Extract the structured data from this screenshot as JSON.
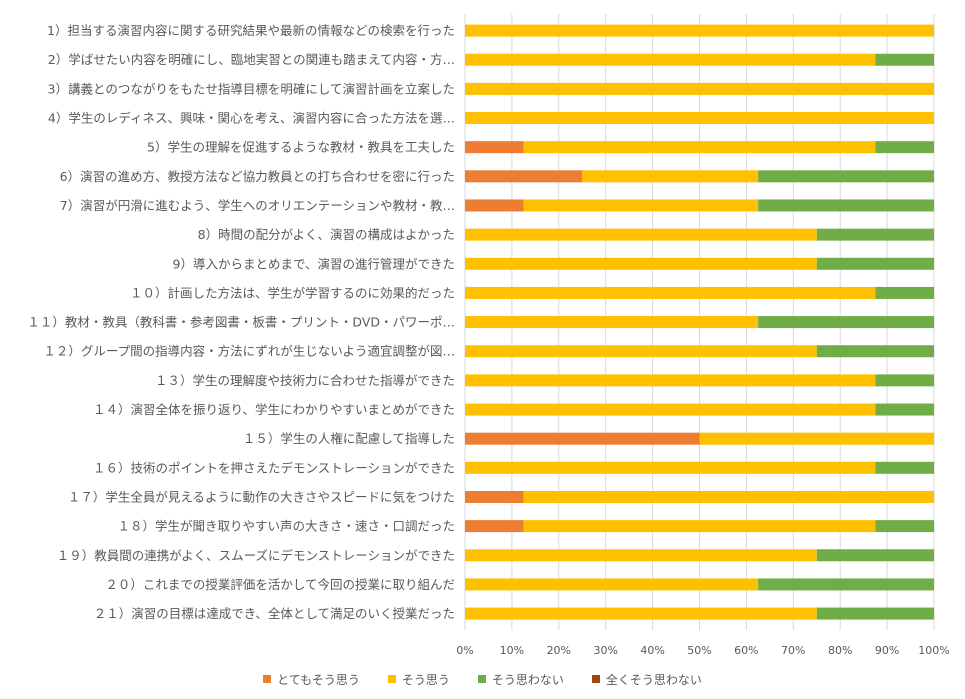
{
  "chart_data": {
    "type": "bar",
    "orientation": "horizontal",
    "stacked": "percent",
    "grid": true,
    "legend_position": "bottom",
    "categories": [
      "1）担当する演習内容に関する研究結果や最新の情報などの検索を行った",
      "2）学ばせたい内容を明確にし、臨地実習との関連も踏まえて内容・方…",
      "3）講義とのつながりをもたせ指導目標を明確にして演習計画を立案した",
      "4）学生のレディネス、興味・関心を考え、演習内容に合った方法を選…",
      "5）学生の理解を促進するような教材・教具を工夫した",
      "6）演習の進め方、教授方法など協力教員との打ち合わせを密に行った",
      "7）演習が円滑に進むよう、学生へのオリエンテーションや教材・教…",
      "8）時間の配分がよく、演習の構成はよかった",
      "9）導入からまとめまで、演習の進行管理ができた",
      "１０）計画した方法は、学生が学習するのに効果的だった",
      "１１）教材・教具（教科書・参考図書・板書・プリント・DVD・パワーポ…",
      "１２）グループ間の指導内容・方法にずれが生じないよう適宜調整が図…",
      "１３）学生の理解度や技術力に合わせた指導ができた",
      "１４）演習全体を振り返り、学生にわかりやすいまとめができた",
      "１５）学生の人権に配慮して指導した",
      "１６）技術のポイントを押さえたデモンストレーションができた",
      "１７）学生全員が見えるように動作の大きさやスピードに気をつけた",
      "１８）学生が聞き取りやすい声の大きさ・速さ・口調だった",
      "１９）教員間の連携がよく、スムーズにデモンストレーションができた",
      "２０）これまでの授業評価を活かして今回の授業に取り組んだ",
      "２１）演習の目標は達成でき、全体として満足のいく授業だった"
    ],
    "series": [
      {
        "name": "とてもそう思う",
        "color": "#ED7D31",
        "values": [
          0,
          0,
          0,
          0,
          12.5,
          25,
          12.5,
          0,
          0,
          0,
          0,
          0,
          0,
          0,
          50,
          0,
          12.5,
          12.5,
          0,
          0,
          0
        ]
      },
      {
        "name": "そう思う",
        "color": "#FFC000",
        "values": [
          100,
          87.5,
          100,
          100,
          75,
          37.5,
          50,
          75,
          75,
          87.5,
          62.5,
          75,
          87.5,
          87.5,
          50,
          87.5,
          87.5,
          75,
          75,
          62.5,
          75
        ]
      },
      {
        "name": "そう思わない",
        "color": "#70AD47",
        "values": [
          0,
          12.5,
          0,
          0,
          12.5,
          37.5,
          37.5,
          25,
          25,
          12.5,
          37.5,
          25,
          12.5,
          12.5,
          0,
          12.5,
          0,
          12.5,
          25,
          37.5,
          25
        ]
      },
      {
        "name": "全くそう思わない",
        "color": "#9E480E",
        "values": [
          0,
          0,
          0,
          0,
          0,
          0,
          0,
          0,
          0,
          0,
          0,
          0,
          0,
          0,
          0,
          0,
          0,
          0,
          0,
          0,
          0
        ]
      }
    ],
    "xlim": [
      0,
      100
    ],
    "ticks": [
      "0%",
      "10%",
      "20%",
      "30%",
      "40%",
      "50%",
      "60%",
      "70%",
      "80%",
      "90%",
      "100%"
    ],
    "grid_color": "#D9D9D9"
  }
}
